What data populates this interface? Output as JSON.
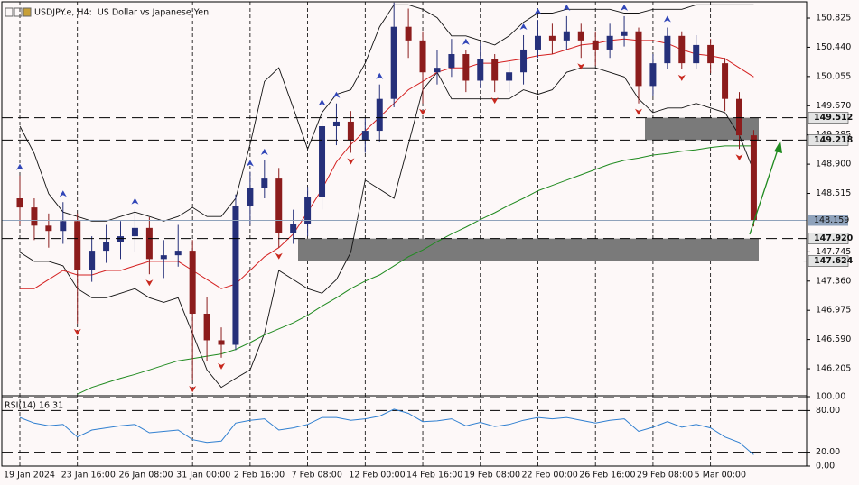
{
  "chart_data": [
    {
      "type": "candlestick",
      "title": "USDJPY.e, H4:  US Dollar vs Japanese Yen",
      "categories": [
        "19 Jan 2024",
        null,
        null,
        null,
        "23 Jan 16:00",
        null,
        null,
        null,
        "26 Jan 08:00",
        null,
        null,
        null,
        "31 Jan 00:00",
        null,
        null,
        null,
        "2 Feb 16:00",
        null,
        null,
        null,
        "7 Feb 08:00",
        null,
        null,
        null,
        "12 Feb 00:00",
        null,
        null,
        null,
        "14 Feb 16:00",
        null,
        null,
        null,
        "19 Feb 08:00",
        null,
        null,
        null,
        "22 Feb 00:00",
        null,
        null,
        null,
        "26 Feb 16:00",
        null,
        null,
        null,
        "29 Feb 08:00",
        null,
        null,
        null,
        "5 Mar 00:00",
        null,
        null,
        null
      ],
      "open": [
        148.45,
        148.33,
        148.09,
        148.02,
        148.15,
        147.5,
        147.76,
        147.88,
        147.95,
        148.06,
        147.65,
        147.7,
        147.76,
        146.93,
        146.58,
        146.52,
        148.35,
        148.59,
        148.71,
        147.99,
        148.11,
        148.47,
        149.4,
        149.46,
        149.22,
        149.34,
        149.76,
        150.71,
        150.53,
        150.11,
        150.17,
        150.35,
        150.0,
        150.29,
        150.0,
        150.11,
        150.41,
        150.59,
        150.53,
        150.65,
        150.53,
        150.41,
        150.59,
        150.65,
        149.93,
        150.23,
        150.59,
        150.23,
        150.47,
        150.23,
        149.76,
        149.28
      ],
      "high": [
        148.75,
        148.45,
        148.25,
        148.4,
        148.25,
        147.95,
        148.1,
        148.15,
        148.3,
        148.2,
        147.9,
        148.1,
        147.9,
        147.15,
        146.75,
        148.5,
        148.8,
        148.95,
        148.85,
        148.3,
        148.6,
        149.6,
        149.7,
        149.6,
        149.5,
        149.95,
        151.03,
        150.95,
        150.65,
        150.4,
        150.55,
        150.4,
        150.5,
        150.35,
        150.25,
        150.6,
        150.8,
        150.75,
        150.85,
        150.75,
        150.65,
        150.75,
        150.85,
        150.7,
        150.35,
        150.7,
        150.65,
        150.6,
        150.55,
        150.3,
        149.85,
        149.35
      ],
      "low": [
        148.1,
        147.9,
        147.8,
        147.85,
        146.8,
        147.35,
        147.6,
        147.65,
        147.75,
        147.45,
        147.4,
        147.55,
        146.05,
        146.3,
        146.35,
        146.45,
        148.1,
        148.45,
        147.8,
        147.85,
        147.95,
        148.3,
        149.15,
        149.05,
        149.05,
        149.2,
        149.65,
        150.3,
        149.7,
        149.95,
        150.05,
        149.85,
        149.9,
        149.85,
        149.85,
        149.95,
        150.3,
        150.35,
        150.4,
        150.3,
        150.2,
        150.3,
        150.45,
        149.7,
        149.8,
        150.15,
        150.15,
        150.15,
        150.1,
        149.6,
        149.1,
        148.08
      ],
      "close": [
        148.33,
        148.09,
        148.02,
        148.15,
        147.5,
        147.76,
        147.88,
        147.95,
        148.06,
        147.65,
        147.7,
        147.76,
        146.93,
        146.58,
        146.52,
        148.35,
        148.59,
        148.71,
        147.99,
        148.11,
        148.47,
        149.4,
        149.46,
        149.22,
        149.34,
        149.76,
        150.71,
        150.53,
        150.11,
        150.17,
        150.35,
        150.0,
        150.29,
        150.0,
        150.11,
        150.41,
        150.59,
        150.53,
        150.65,
        150.53,
        150.41,
        150.59,
        150.65,
        149.93,
        150.23,
        150.59,
        150.23,
        150.47,
        150.23,
        149.76,
        149.28,
        148.16
      ],
      "upper": [
        149.4,
        149.04,
        148.51,
        148.27,
        148.21,
        148.15,
        148.15,
        148.21,
        148.27,
        148.21,
        148.15,
        148.21,
        148.33,
        148.21,
        148.21,
        148.45,
        149.16,
        149.99,
        150.17,
        149.64,
        149.1,
        149.58,
        149.82,
        149.88,
        150.23,
        150.71,
        151.0,
        151.0,
        150.94,
        150.83,
        150.59,
        150.59,
        150.53,
        150.47,
        150.59,
        150.77,
        150.89,
        150.89,
        150.94,
        150.94,
        150.94,
        150.94,
        150.89,
        150.89,
        150.94,
        150.94,
        150.94,
        151.0,
        151.0,
        151.0,
        151.0,
        151.0
      ],
      "middle": [
        147.26,
        147.26,
        147.38,
        147.5,
        147.44,
        147.44,
        147.5,
        147.5,
        147.56,
        147.62,
        147.62,
        147.62,
        147.5,
        147.38,
        147.26,
        147.32,
        147.5,
        147.68,
        147.8,
        147.98,
        148.27,
        148.57,
        148.93,
        149.16,
        149.34,
        149.52,
        149.7,
        149.88,
        149.99,
        150.11,
        150.17,
        150.17,
        150.23,
        150.23,
        150.26,
        150.29,
        150.33,
        150.35,
        150.41,
        150.47,
        150.49,
        150.53,
        150.55,
        150.53,
        150.53,
        150.49,
        150.41,
        150.35,
        150.33,
        150.29,
        150.17,
        150.05
      ],
      "lower": [
        147.74,
        147.62,
        147.62,
        147.56,
        147.26,
        147.14,
        147.14,
        147.2,
        147.26,
        147.14,
        147.08,
        147.14,
        146.67,
        146.19,
        145.96,
        146.08,
        146.19,
        146.67,
        147.5,
        147.38,
        147.26,
        147.2,
        147.38,
        147.74,
        148.69,
        148.57,
        148.45,
        149.16,
        149.88,
        150.11,
        149.76,
        149.76,
        149.76,
        149.76,
        149.76,
        149.88,
        149.82,
        149.88,
        150.11,
        150.17,
        150.17,
        150.11,
        150.05,
        149.76,
        149.58,
        149.64,
        149.64,
        149.7,
        149.64,
        149.58,
        149.28,
        148.81
      ],
      "ma": [
        null,
        null,
        null,
        null,
        145.87,
        145.96,
        146.02,
        146.08,
        146.13,
        146.19,
        146.25,
        146.31,
        146.34,
        146.37,
        146.4,
        146.46,
        146.55,
        146.65,
        146.73,
        146.81,
        146.91,
        147.03,
        147.14,
        147.26,
        147.36,
        147.44,
        147.56,
        147.68,
        147.77,
        147.88,
        147.98,
        148.07,
        148.17,
        148.26,
        148.36,
        148.45,
        148.55,
        148.62,
        148.69,
        148.76,
        148.83,
        148.9,
        148.95,
        148.98,
        149.02,
        149.04,
        149.07,
        149.09,
        149.12,
        149.14,
        149.14,
        149.14
      ],
      "fractals_up": [
        148.75,
        null,
        null,
        148.4,
        null,
        null,
        null,
        null,
        148.3,
        null,
        null,
        null,
        null,
        null,
        null,
        null,
        148.8,
        148.95,
        null,
        null,
        null,
        149.6,
        149.7,
        null,
        null,
        149.95,
        151.03,
        null,
        null,
        null,
        null,
        150.4,
        null,
        null,
        null,
        150.6,
        150.8,
        null,
        150.85,
        null,
        null,
        null,
        150.85,
        null,
        null,
        150.7,
        null,
        null,
        null,
        null,
        null,
        null
      ],
      "fractals_down": [
        null,
        null,
        null,
        null,
        146.8,
        null,
        null,
        null,
        null,
        147.45,
        null,
        null,
        146.05,
        null,
        146.35,
        null,
        null,
        null,
        147.8,
        null,
        null,
        null,
        null,
        149.05,
        null,
        null,
        null,
        null,
        149.7,
        null,
        null,
        null,
        null,
        149.85,
        null,
        null,
        null,
        null,
        null,
        150.3,
        null,
        null,
        null,
        149.7,
        null,
        null,
        150.15,
        null,
        null,
        null,
        149.1,
        null
      ],
      "levels": [
        149.512,
        149.218,
        {
          "value": 147.92,
          "label": "147.920"
        },
        147.624
      ],
      "current_price": 148.159,
      "ylim": [
        145.861,
        151.039
      ],
      "yticks": [
        150.825,
        {
          "value": 150.44,
          "label": "150.440"
        },
        150.055,
        {
          "value": 149.67,
          "label": "149.670"
        },
        149.285,
        {
          "value": 148.9,
          "label": "148.900"
        },
        148.515,
        147.745,
        {
          "value": 147.36,
          "label": "147.360"
        },
        146.975,
        {
          "value": 146.59,
          "label": "146.590"
        },
        146.205
      ],
      "up_color": "#26307a",
      "down_color": "#8c1c1c",
      "band_color": "#111111",
      "middle_color": "#d42020",
      "ma_color": "#1f8a1f",
      "fractal_up_color": "#3146b8",
      "fractal_down_color": "#c8281e",
      "zone_color": "#7a7a7a",
      "current_color": "#8fa2bb"
    },
    {
      "type": "line",
      "title": "RSI(14) 16.31",
      "values": [
        70,
        62,
        58,
        60,
        42,
        52,
        55,
        58,
        60,
        48,
        50,
        52,
        38,
        34,
        36,
        62,
        66,
        68,
        52,
        55,
        60,
        70,
        70,
        66,
        68,
        72,
        82,
        76,
        64,
        65,
        68,
        58,
        63,
        57,
        60,
        66,
        70,
        68,
        70,
        66,
        62,
        66,
        68,
        50,
        56,
        64,
        56,
        60,
        55,
        42,
        34,
        16.31
      ],
      "color": "#2f7fd0",
      "ylim": [
        0,
        100
      ],
      "yticks": [
        {
          "value": 100,
          "label": "100.00"
        },
        {
          "value": 80,
          "label": "80.00"
        },
        {
          "value": 20,
          "label": "20.00"
        },
        {
          "value": 0,
          "label": "0.00"
        }
      ]
    }
  ]
}
